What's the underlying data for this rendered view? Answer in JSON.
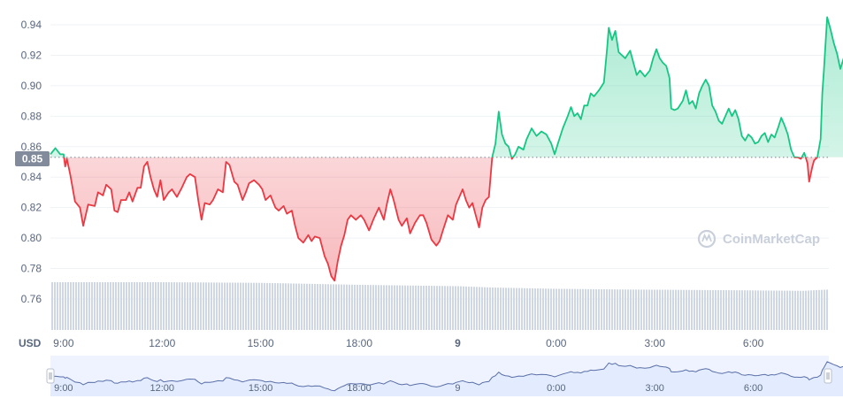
{
  "currency_label": "USD",
  "watermark": "CoinMarketCap",
  "current_price_badge": "0.85",
  "colors": {
    "up": "#16c784",
    "down": "#ea3943",
    "grid": "#eff2f5",
    "volume": "#cfd6e4",
    "navigator_fill": "#e3ecff",
    "navigator_line": "#5a6fa8"
  },
  "chart_data": {
    "type": "area",
    "reference_price": 0.853,
    "ylim": [
      0.75,
      0.95
    ],
    "yticks": [
      "0.94",
      "0.92",
      "0.90",
      "0.88",
      "0.86",
      "0.84",
      "0.82",
      "0.80",
      "0.78",
      "0.76"
    ],
    "xticks": [
      "9:00",
      "12:00",
      "15:00",
      "18:00",
      "9",
      "0:00",
      "3:00",
      "6:00"
    ],
    "x_hours_start": 8.6,
    "x_hours_end": 32.3,
    "price": [
      [
        8.6,
        0.855
      ],
      [
        8.75,
        0.859
      ],
      [
        8.9,
        0.855
      ],
      [
        9.0,
        0.855
      ],
      [
        9.05,
        0.847
      ],
      [
        9.1,
        0.852
      ],
      [
        9.2,
        0.842
      ],
      [
        9.35,
        0.824
      ],
      [
        9.5,
        0.82
      ],
      [
        9.6,
        0.808
      ],
      [
        9.75,
        0.822
      ],
      [
        9.95,
        0.821
      ],
      [
        10.05,
        0.83
      ],
      [
        10.2,
        0.828
      ],
      [
        10.3,
        0.835
      ],
      [
        10.45,
        0.832
      ],
      [
        10.55,
        0.818
      ],
      [
        10.65,
        0.817
      ],
      [
        10.75,
        0.825
      ],
      [
        10.9,
        0.825
      ],
      [
        11.0,
        0.83
      ],
      [
        11.1,
        0.824
      ],
      [
        11.25,
        0.833
      ],
      [
        11.35,
        0.833
      ],
      [
        11.45,
        0.847
      ],
      [
        11.55,
        0.85
      ],
      [
        11.65,
        0.84
      ],
      [
        11.75,
        0.832
      ],
      [
        11.85,
        0.827
      ],
      [
        11.95,
        0.838
      ],
      [
        12.05,
        0.825
      ],
      [
        12.2,
        0.83
      ],
      [
        12.3,
        0.832
      ],
      [
        12.45,
        0.827
      ],
      [
        12.6,
        0.833
      ],
      [
        12.75,
        0.84
      ],
      [
        12.85,
        0.842
      ],
      [
        13.0,
        0.84
      ],
      [
        13.1,
        0.825
      ],
      [
        13.2,
        0.812
      ],
      [
        13.3,
        0.823
      ],
      [
        13.45,
        0.822
      ],
      [
        13.55,
        0.825
      ],
      [
        13.7,
        0.832
      ],
      [
        13.85,
        0.83
      ],
      [
        13.95,
        0.85
      ],
      [
        14.05,
        0.848
      ],
      [
        14.2,
        0.837
      ],
      [
        14.3,
        0.835
      ],
      [
        14.45,
        0.825
      ],
      [
        14.55,
        0.83
      ],
      [
        14.65,
        0.836
      ],
      [
        14.8,
        0.838
      ],
      [
        14.95,
        0.835
      ],
      [
        15.05,
        0.832
      ],
      [
        15.15,
        0.825
      ],
      [
        15.3,
        0.828
      ],
      [
        15.45,
        0.82
      ],
      [
        15.55,
        0.818
      ],
      [
        15.7,
        0.821
      ],
      [
        15.8,
        0.816
      ],
      [
        15.95,
        0.818
      ],
      [
        16.05,
        0.808
      ],
      [
        16.15,
        0.8
      ],
      [
        16.3,
        0.797
      ],
      [
        16.45,
        0.802
      ],
      [
        16.55,
        0.798
      ],
      [
        16.65,
        0.801
      ],
      [
        16.8,
        0.8
      ],
      [
        16.95,
        0.788
      ],
      [
        17.05,
        0.783
      ],
      [
        17.15,
        0.775
      ],
      [
        17.25,
        0.772
      ],
      [
        17.35,
        0.785
      ],
      [
        17.45,
        0.795
      ],
      [
        17.55,
        0.802
      ],
      [
        17.65,
        0.812
      ],
      [
        17.75,
        0.815
      ],
      [
        17.9,
        0.812
      ],
      [
        18.05,
        0.815
      ],
      [
        18.15,
        0.812
      ],
      [
        18.3,
        0.805
      ],
      [
        18.45,
        0.813
      ],
      [
        18.6,
        0.82
      ],
      [
        18.75,
        0.812
      ],
      [
        18.85,
        0.823
      ],
      [
        18.95,
        0.832
      ],
      [
        19.05,
        0.825
      ],
      [
        19.2,
        0.812
      ],
      [
        19.3,
        0.808
      ],
      [
        19.45,
        0.813
      ],
      [
        19.55,
        0.803
      ],
      [
        19.7,
        0.81
      ],
      [
        19.85,
        0.815
      ],
      [
        19.95,
        0.815
      ],
      [
        20.05,
        0.81
      ],
      [
        20.2,
        0.799
      ],
      [
        20.35,
        0.795
      ],
      [
        20.45,
        0.798
      ],
      [
        20.55,
        0.805
      ],
      [
        20.7,
        0.815
      ],
      [
        20.85,
        0.812
      ],
      [
        20.95,
        0.822
      ],
      [
        21.05,
        0.827
      ],
      [
        21.15,
        0.832
      ],
      [
        21.25,
        0.825
      ],
      [
        21.35,
        0.82
      ],
      [
        21.45,
        0.823
      ],
      [
        21.55,
        0.815
      ],
      [
        21.65,
        0.807
      ],
      [
        21.75,
        0.82
      ],
      [
        21.85,
        0.825
      ],
      [
        21.95,
        0.827
      ],
      [
        22.05,
        0.853
      ],
      [
        22.15,
        0.862
      ],
      [
        22.25,
        0.883
      ],
      [
        22.35,
        0.868
      ],
      [
        22.45,
        0.862
      ],
      [
        22.55,
        0.86
      ],
      [
        22.65,
        0.852
      ],
      [
        22.75,
        0.855
      ],
      [
        22.85,
        0.86
      ],
      [
        23.0,
        0.858
      ],
      [
        23.1,
        0.865
      ],
      [
        23.25,
        0.872
      ],
      [
        23.4,
        0.867
      ],
      [
        23.55,
        0.87
      ],
      [
        23.7,
        0.868
      ],
      [
        23.85,
        0.862
      ],
      [
        23.95,
        0.855
      ],
      [
        24.05,
        0.862
      ],
      [
        24.2,
        0.872
      ],
      [
        24.35,
        0.88
      ],
      [
        24.45,
        0.886
      ],
      [
        24.55,
        0.88
      ],
      [
        24.65,
        0.882
      ],
      [
        24.75,
        0.878
      ],
      [
        24.85,
        0.887
      ],
      [
        24.95,
        0.887
      ],
      [
        25.05,
        0.895
      ],
      [
        25.15,
        0.893
      ],
      [
        25.3,
        0.897
      ],
      [
        25.45,
        0.902
      ],
      [
        25.55,
        0.925
      ],
      [
        25.6,
        0.938
      ],
      [
        25.7,
        0.93
      ],
      [
        25.8,
        0.936
      ],
      [
        25.9,
        0.922
      ],
      [
        26.0,
        0.92
      ],
      [
        26.1,
        0.918
      ],
      [
        26.25,
        0.923
      ],
      [
        26.35,
        0.915
      ],
      [
        26.45,
        0.907
      ],
      [
        26.55,
        0.91
      ],
      [
        26.7,
        0.906
      ],
      [
        26.85,
        0.91
      ],
      [
        26.95,
        0.918
      ],
      [
        27.05,
        0.924
      ],
      [
        27.15,
        0.918
      ],
      [
        27.25,
        0.915
      ],
      [
        27.35,
        0.913
      ],
      [
        27.45,
        0.905
      ],
      [
        27.5,
        0.885
      ],
      [
        27.6,
        0.884
      ],
      [
        27.7,
        0.885
      ],
      [
        27.85,
        0.89
      ],
      [
        27.95,
        0.897
      ],
      [
        28.05,
        0.888
      ],
      [
        28.15,
        0.89
      ],
      [
        28.25,
        0.885
      ],
      [
        28.35,
        0.895
      ],
      [
        28.45,
        0.9
      ],
      [
        28.55,
        0.904
      ],
      [
        28.65,
        0.9
      ],
      [
        28.75,
        0.887
      ],
      [
        28.85,
        0.883
      ],
      [
        28.95,
        0.877
      ],
      [
        29.05,
        0.875
      ],
      [
        29.15,
        0.88
      ],
      [
        29.25,
        0.885
      ],
      [
        29.35,
        0.88
      ],
      [
        29.45,
        0.884
      ],
      [
        29.55,
        0.878
      ],
      [
        29.65,
        0.867
      ],
      [
        29.75,
        0.864
      ],
      [
        29.85,
        0.868
      ],
      [
        29.95,
        0.866
      ],
      [
        30.05,
        0.862
      ],
      [
        30.15,
        0.863
      ],
      [
        30.25,
        0.867
      ],
      [
        30.35,
        0.869
      ],
      [
        30.45,
        0.863
      ],
      [
        30.55,
        0.868
      ],
      [
        30.65,
        0.866
      ],
      [
        30.75,
        0.872
      ],
      [
        30.85,
        0.879
      ],
      [
        30.95,
        0.874
      ],
      [
        31.05,
        0.868
      ],
      [
        31.15,
        0.858
      ],
      [
        31.25,
        0.853
      ],
      [
        31.35,
        0.853
      ],
      [
        31.45,
        0.852
      ],
      [
        31.55,
        0.856
      ],
      [
        31.65,
        0.849
      ],
      [
        31.7,
        0.837
      ],
      [
        31.8,
        0.847
      ],
      [
        31.85,
        0.851
      ],
      [
        31.95,
        0.853
      ],
      [
        32.05,
        0.865
      ],
      [
        32.1,
        0.895
      ],
      [
        32.15,
        0.91
      ],
      [
        32.25,
        0.945
      ],
      [
        32.35,
        0.937
      ],
      [
        32.45,
        0.928
      ],
      [
        32.55,
        0.921
      ],
      [
        32.65,
        0.911
      ],
      [
        32.75,
        0.918
      ],
      [
        32.85,
        0.925
      ],
      [
        32.95,
        0.925
      ]
    ],
    "volume_level": [
      [
        8.6,
        0.72
      ],
      [
        12.0,
        0.72
      ],
      [
        15.0,
        0.71
      ],
      [
        18.0,
        0.68
      ],
      [
        21.0,
        0.66
      ],
      [
        22.0,
        0.64
      ],
      [
        24.0,
        0.62
      ],
      [
        26.0,
        0.61
      ],
      [
        29.0,
        0.6
      ],
      [
        31.5,
        0.59
      ],
      [
        32.3,
        0.61
      ],
      [
        32.95,
        0.64
      ]
    ],
    "navigator_ticks": [
      "9:00",
      "12:00",
      "15:00",
      "18:00",
      "9",
      "0:00",
      "3:00",
      "6:00"
    ]
  }
}
